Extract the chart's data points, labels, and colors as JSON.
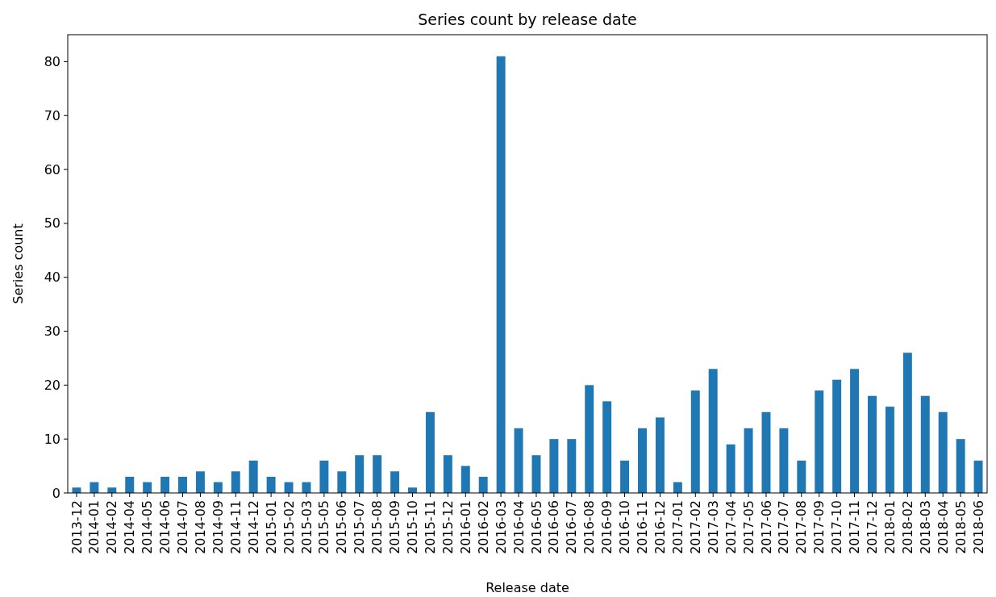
{
  "chart_data": {
    "type": "bar",
    "title": "Series count by release date",
    "xlabel": "Release date",
    "ylabel": "Series count",
    "categories": [
      "2013-12",
      "2014-01",
      "2014-02",
      "2014-04",
      "2014-05",
      "2014-06",
      "2014-07",
      "2014-08",
      "2014-09",
      "2014-11",
      "2014-12",
      "2015-01",
      "2015-02",
      "2015-03",
      "2015-05",
      "2015-06",
      "2015-07",
      "2015-08",
      "2015-09",
      "2015-10",
      "2015-11",
      "2015-12",
      "2016-01",
      "2016-02",
      "2016-03",
      "2016-04",
      "2016-05",
      "2016-06",
      "2016-07",
      "2016-08",
      "2016-09",
      "2016-10",
      "2016-11",
      "2016-12",
      "2017-01",
      "2017-02",
      "2017-03",
      "2017-04",
      "2017-05",
      "2017-06",
      "2017-07",
      "2017-08",
      "2017-09",
      "2017-10",
      "2017-11",
      "2017-12",
      "2018-01",
      "2018-02",
      "2018-03",
      "2018-04",
      "2018-05",
      "2018-06"
    ],
    "values": [
      1,
      2,
      1,
      3,
      2,
      3,
      3,
      4,
      2,
      4,
      6,
      3,
      2,
      2,
      6,
      4,
      7,
      7,
      4,
      1,
      15,
      7,
      5,
      3,
      81,
      12,
      7,
      10,
      10,
      20,
      17,
      6,
      12,
      14,
      2,
      19,
      23,
      9,
      12,
      15,
      12,
      6,
      19,
      21,
      23,
      18,
      16,
      26,
      18,
      15,
      10,
      6
    ],
    "color": "#1f77b4",
    "ylim": [
      0,
      85
    ],
    "yticks": [
      0,
      10,
      20,
      30,
      40,
      50,
      60,
      70,
      80
    ],
    "grid": false
  }
}
